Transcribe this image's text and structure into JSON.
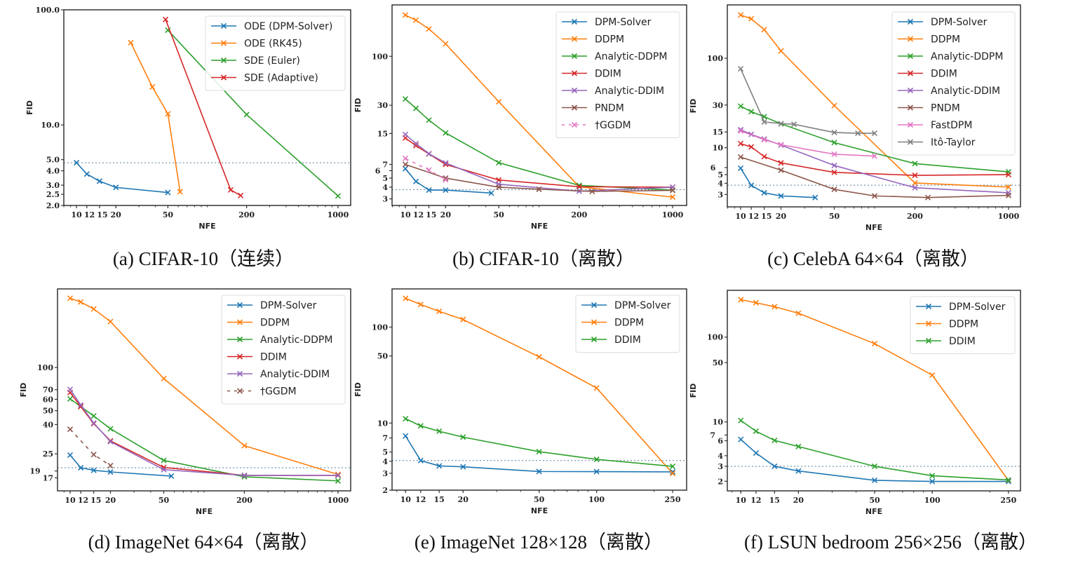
{
  "chart_data": [
    {
      "type": "line",
      "caption": "(a) CIFAR-10（连续）",
      "xlabel": "NFE",
      "ylabel": "FID",
      "xscale": "log",
      "yscale": "log",
      "xlim": [
        8,
        1250
      ],
      "ylim": [
        2,
        100
      ],
      "grid": false,
      "legend": "top-right",
      "xticks": [
        10,
        12,
        15,
        20,
        50,
        200,
        1000
      ],
      "xtick_labels": [
        "10",
        "12",
        "15",
        "20",
        "50",
        "200",
        "1000"
      ],
      "yticks": [
        100,
        10,
        5,
        4,
        3,
        2.5,
        2
      ],
      "ytick_labels": [
        "100.0",
        "10.0",
        "5.0",
        "4.0",
        "3.0",
        "2.5",
        "2.0"
      ],
      "reference_line": 4.7,
      "series": [
        {
          "name": "ODE (DPM-Solver)",
          "color": "#1f77b4",
          "x": [
            10,
            12,
            15,
            20,
            50
          ],
          "y": [
            4.7,
            3.75,
            3.25,
            2.87,
            2.59
          ]
        },
        {
          "name": "ODE (RK45)",
          "color": "#ff7f0e",
          "x": [
            26,
            38,
            50,
            62
          ],
          "y": [
            51.9,
            21.4,
            12.5,
            2.63
          ]
        },
        {
          "name": "SDE (Euler)",
          "color": "#2ca02c",
          "x": [
            50,
            200,
            1000
          ],
          "y": [
            66.5,
            12.3,
            2.42
          ]
        },
        {
          "name": "SDE (Adaptive)",
          "color": "#d62728",
          "x": [
            48,
            151,
            180
          ],
          "y": [
            82.4,
            2.73,
            2.44
          ]
        }
      ]
    },
    {
      "type": "line",
      "caption": "(b) CIFAR-10（离散）",
      "xlabel": "NFE",
      "ylabel": "FID",
      "xscale": "log",
      "yscale": "log",
      "xlim": [
        7.95,
        1273
      ],
      "ylim": [
        2.55,
        354
      ],
      "grid": false,
      "legend": "top-right",
      "xticks": [
        10,
        12,
        15,
        20,
        50,
        200,
        1000
      ],
      "xtick_labels": [
        "10",
        "12",
        "15",
        "20",
        "50",
        "200",
        "1000"
      ],
      "yticks": [
        100,
        30,
        15,
        7,
        6,
        5,
        4,
        3
      ],
      "ytick_labels": [
        "100",
        "30",
        "15",
        "7",
        "6",
        "5",
        "4",
        "3"
      ],
      "reference_line": 3.77,
      "series": [
        {
          "name": "DPM-Solver",
          "color": "#1f77b4",
          "x": [
            10,
            12,
            15,
            20,
            44
          ],
          "y": [
            6.3,
            4.6,
            3.72,
            3.72,
            3.46
          ]
        },
        {
          "name": "DDPM",
          "color": "#ff7f0e",
          "x": [
            10,
            12,
            15,
            20,
            50,
            200,
            1000
          ],
          "y": [
            276,
            243,
            196,
            136,
            32.7,
            4.04,
            3.13
          ]
        },
        {
          "name": "Analytic-DDPM",
          "color": "#2ca02c",
          "x": [
            10,
            12,
            15,
            20,
            50,
            200,
            1000
          ],
          "y": [
            35.0,
            27.8,
            20.8,
            15.2,
            7.3,
            4.18,
            3.72
          ]
        },
        {
          "name": "DDIM",
          "color": "#d62728",
          "x": [
            10,
            12,
            15,
            20,
            50,
            200,
            1000
          ],
          "y": [
            13.4,
            11.1,
            9.07,
            7.0,
            4.77,
            4.04,
            4.0
          ]
        },
        {
          "name": "Analytic-DDIM",
          "color": "#9467bd",
          "x": [
            10,
            12,
            15,
            20,
            50,
            200,
            1000
          ],
          "y": [
            14.6,
            11.7,
            9.1,
            7.25,
            4.3,
            3.62,
            4.0
          ]
        },
        {
          "name": "PNDM",
          "color": "#8c564b",
          "x": [
            10,
            20,
            50,
            100,
            250,
            1000
          ],
          "y": [
            7.0,
            5.0,
            4.0,
            3.8,
            3.6,
            3.7
          ]
        },
        {
          "name": "†GGDM",
          "color": "#e377c2",
          "dashed": true,
          "x": [
            10,
            15,
            20
          ],
          "y": [
            8.1,
            6.1,
            4.8
          ]
        }
      ]
    },
    {
      "type": "line",
      "caption": "(c) CelebA 64×64（离散）",
      "xlabel": "NFE",
      "ylabel": "FID",
      "xscale": "log",
      "yscale": "log",
      "xlim": [
        7.95,
        1228
      ],
      "ylim": [
        2.18,
        395
      ],
      "grid": false,
      "legend": "top-right",
      "xticks": [
        10,
        12,
        15,
        20,
        50,
        200,
        1000
      ],
      "xtick_labels": [
        "10",
        "12",
        "15",
        "20",
        "50",
        "200",
        "1000"
      ],
      "yticks": [
        100,
        30,
        15,
        10,
        6,
        5,
        4,
        3
      ],
      "ytick_labels": [
        "100",
        "30",
        "15",
        "10",
        "6",
        "5",
        "4",
        "3"
      ],
      "reference_line": 3.81,
      "series": [
        {
          "name": "DPM-Solver",
          "color": "#1f77b4",
          "x": [
            10,
            12,
            15,
            20,
            36
          ],
          "y": [
            5.89,
            3.79,
            3.13,
            2.89,
            2.77
          ]
        },
        {
          "name": "DDPM",
          "color": "#ff7f0e",
          "x": [
            10,
            12,
            15,
            20,
            50,
            200,
            1000
          ],
          "y": [
            305,
            276,
            209,
            121,
            29.6,
            4.03,
            3.63
          ]
        },
        {
          "name": "Analytic-DDPM",
          "color": "#2ca02c",
          "x": [
            10,
            12,
            15,
            20,
            50,
            200,
            1000
          ],
          "y": [
            29.1,
            25.3,
            22.2,
            18.5,
            11.4,
            6.64,
            5.37
          ]
        },
        {
          "name": "DDIM",
          "color": "#d62728",
          "x": [
            10,
            12,
            15,
            20,
            50,
            200,
            1000
          ],
          "y": [
            11.1,
            10.2,
            7.95,
            6.76,
            5.3,
            4.91,
            5.0
          ]
        },
        {
          "name": "Analytic-DDIM",
          "color": "#9467bd",
          "x": [
            10,
            12,
            15,
            20,
            50,
            200,
            1000
          ],
          "y": [
            15.9,
            14.1,
            12.5,
            10.7,
            6.33,
            3.57,
            3.13
          ]
        },
        {
          "name": "PNDM",
          "color": "#8c564b",
          "x": [
            10,
            20,
            50,
            100,
            250,
            1000
          ],
          "y": [
            7.86,
            5.61,
            3.42,
            2.89,
            2.77,
            2.93
          ]
        },
        {
          "name": "FastDPM",
          "color": "#e377c2",
          "x": [
            10,
            15,
            20,
            50,
            100
          ],
          "y": [
            15.4,
            12.3,
            10.8,
            8.45,
            8.06
          ]
        },
        {
          "name": "Itô-Taylor",
          "color": "#7f7f7f",
          "x": [
            10,
            15,
            20,
            25,
            50,
            75,
            100
          ],
          "y": [
            76.3,
            19.4,
            18.6,
            18.3,
            14.8,
            14.5,
            14.5
          ]
        }
      ]
    },
    {
      "type": "line",
      "caption": "(d) ImageNet 64×64（离散）",
      "xlabel": "NFE",
      "ylabel": "FID",
      "xscale": "log",
      "yscale": "log",
      "xlim": [
        8.05,
        1243
      ],
      "ylim": [
        13.8,
        353
      ],
      "grid": false,
      "legend": "top-right",
      "xticks": [
        10,
        12,
        15,
        20,
        50,
        200,
        1000
      ],
      "xtick_labels": [
        "10",
        "12",
        "15",
        "20",
        "50",
        "200",
        "1000"
      ],
      "yticks": [
        100,
        70,
        60,
        50,
        40,
        25,
        19,
        17
      ],
      "ytick_labels": [
        "100",
        "70",
        "60",
        "50",
        "40",
        "25",
        "19",
        "17"
      ],
      "reference_line": 20.0,
      "series": [
        {
          "name": "DPM-Solver",
          "color": "#1f77b4",
          "x": [
            10,
            12,
            15,
            20,
            57
          ],
          "y": [
            24.5,
            20.0,
            19.2,
            18.7,
            17.5
          ]
        },
        {
          "name": "DDPM",
          "color": "#ff7f0e",
          "x": [
            10,
            12,
            15,
            20,
            50,
            200,
            1000
          ],
          "y": [
            304,
            286,
            256,
            209,
            83.8,
            28.5,
            17.96
          ]
        },
        {
          "name": "Analytic-DDPM",
          "color": "#2ca02c",
          "x": [
            10,
            12,
            15,
            20,
            50,
            200,
            1000
          ],
          "y": [
            60.4,
            53.4,
            45.9,
            37.4,
            22.5,
            17.3,
            16.2
          ]
        },
        {
          "name": "DDIM",
          "color": "#d62728",
          "x": [
            10,
            12,
            15,
            20,
            50,
            200,
            1000
          ],
          "y": [
            66.9,
            53.4,
            40.6,
            30.8,
            20.1,
            17.7,
            17.7
          ]
        },
        {
          "name": "Analytic-DDIM",
          "color": "#9467bd",
          "x": [
            10,
            12,
            15,
            20,
            50,
            200,
            1000
          ],
          "y": [
            70.3,
            54.8,
            41.0,
            30.4,
            19.4,
            17.7,
            17.7
          ]
        },
        {
          "name": "†GGDM",
          "color": "#8c564b",
          "dashed": true,
          "x": [
            10,
            15,
            20
          ],
          "y": [
            37.1,
            24.7,
            20.7
          ]
        }
      ]
    },
    {
      "type": "line",
      "caption": "(e) ImageNet 128×128（离散）",
      "xlabel": "NFE",
      "ylabel": "FID",
      "xscale": "log",
      "yscale": "log",
      "xlim": [
        8.5,
        296
      ],
      "ylim": [
        2.0,
        250
      ],
      "grid": false,
      "legend": "top-right",
      "xticks": [
        10,
        12,
        15,
        20,
        50,
        100,
        250
      ],
      "xtick_labels": [
        "10",
        "12",
        "15",
        "20",
        "50",
        "100",
        "250"
      ],
      "yticks": [
        100,
        50,
        10,
        7,
        5,
        4,
        3,
        2
      ],
      "ytick_labels": [
        "100",
        "50",
        "10",
        "7",
        "5",
        "4",
        "3",
        "2"
      ],
      "reference_line": 4.07,
      "series": [
        {
          "name": "DPM-Solver",
          "color": "#1f77b4",
          "x": [
            10,
            12,
            15,
            20,
            50,
            100,
            250
          ],
          "y": [
            7.35,
            4.07,
            3.58,
            3.5,
            3.13,
            3.12,
            3.1
          ]
        },
        {
          "name": "DDPM",
          "color": "#ff7f0e",
          "x": [
            10,
            12,
            15,
            20,
            50,
            100,
            250
          ],
          "y": [
            199.5,
            172,
            146,
            120,
            49,
            23.2,
            2.99
          ]
        },
        {
          "name": "DDIM",
          "color": "#2ca02c",
          "x": [
            10,
            12,
            15,
            20,
            50,
            100,
            250
          ],
          "y": [
            11.1,
            9.35,
            8.22,
            7.14,
            5.04,
            4.19,
            3.54
          ]
        }
      ]
    },
    {
      "type": "line",
      "caption": "(f) LSUN bedroom 256×256（离散）",
      "xlabel": "NFE",
      "ylabel": "FID",
      "xscale": "log",
      "yscale": "log",
      "xlim": [
        8.5,
        289
      ],
      "ylim": [
        1.54,
        356
      ],
      "grid": false,
      "legend": "top-right",
      "xticks": [
        10,
        12,
        15,
        20,
        50,
        100,
        250
      ],
      "xtick_labels": [
        "10",
        "12",
        "15",
        "20",
        "50",
        "100",
        "250"
      ],
      "yticks": [
        100,
        50,
        10,
        7,
        6,
        4,
        3,
        2
      ],
      "ytick_labels": [
        "100",
        "50",
        "10",
        "7",
        "6",
        "4",
        "3",
        "2"
      ],
      "reference_line": 3.0,
      "series": [
        {
          "name": "DPM-Solver",
          "color": "#1f77b4",
          "x": [
            10,
            12,
            15,
            20,
            50,
            100,
            250
          ],
          "y": [
            6.21,
            4.3,
            3.0,
            2.64,
            2.05,
            1.99,
            1.99
          ]
        },
        {
          "name": "DDPM",
          "color": "#ff7f0e",
          "x": [
            10,
            12,
            15,
            20,
            50,
            100,
            250
          ],
          "y": [
            276,
            254,
            228,
            191,
            83.7,
            35.6,
            2.05
          ]
        },
        {
          "name": "DDIM",
          "color": "#2ca02c",
          "x": [
            10,
            12,
            15,
            20,
            50,
            100,
            250
          ],
          "y": [
            10.4,
            7.77,
            6.06,
            5.13,
            3.0,
            2.32,
            2.07
          ]
        }
      ]
    }
  ]
}
